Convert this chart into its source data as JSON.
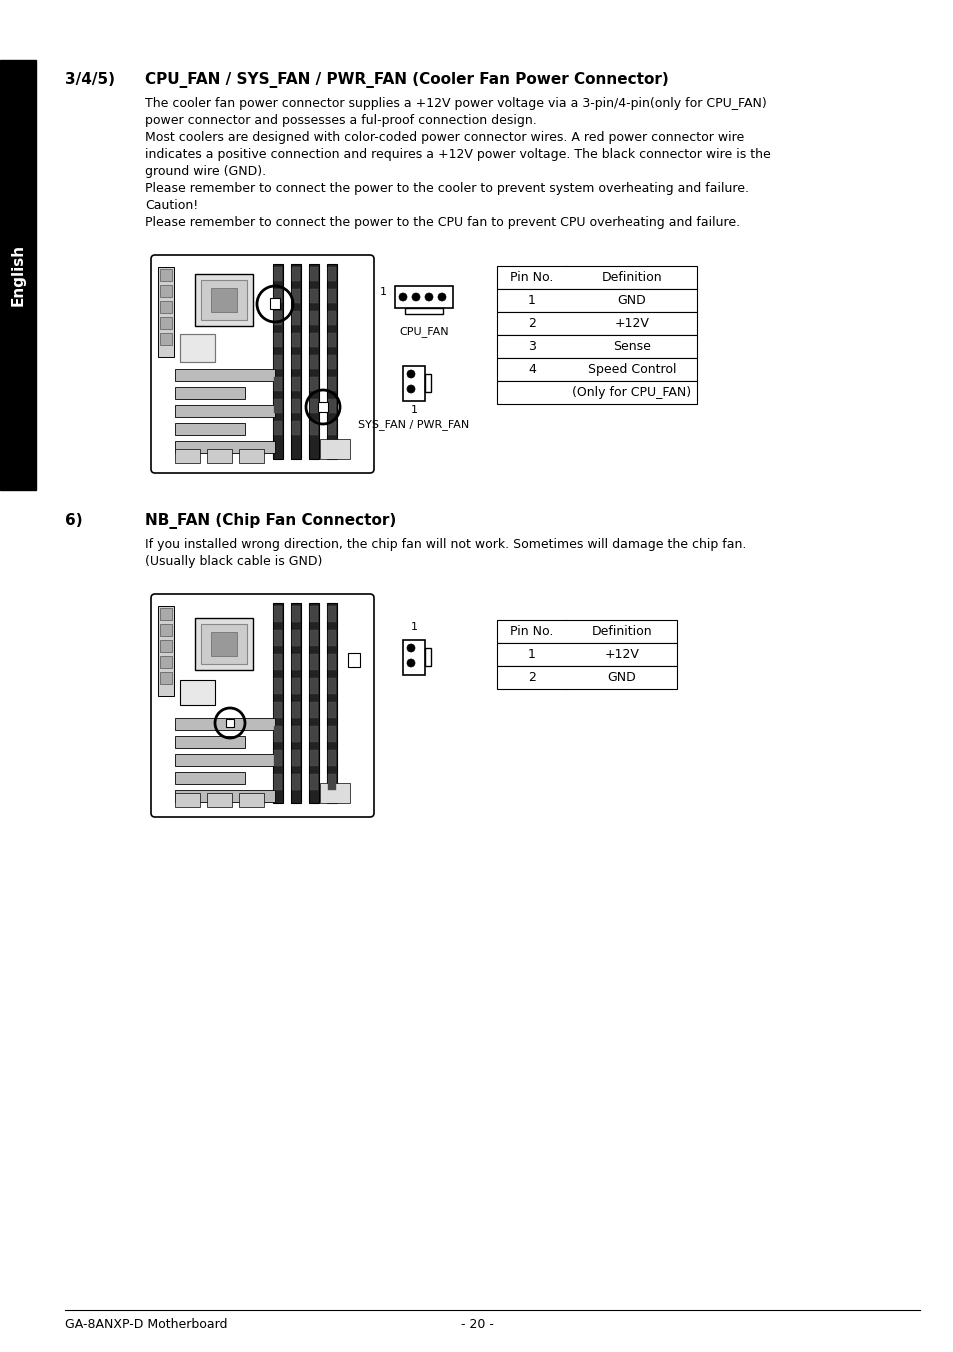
{
  "bg_color": "#ffffff",
  "sidebar_color": "#000000",
  "sidebar_text": "English",
  "sidebar_text_color": "#ffffff",
  "title_345": "3/4/5)",
  "heading_345": "CPU_FAN / SYS_FAN / PWR_FAN (Cooler Fan Power Connector)",
  "body_345": [
    "The cooler fan power connector supplies a +12V power voltage via a 3-pin/4-pin(only for CPU_FAN)",
    "power connector and possesses a ful-proof connection design.",
    "Most coolers are designed with color-coded power connector wires. A red power connector wire",
    "indicates a positive connection and requires a +12V power voltage. The black connector wire is the",
    "ground wire (GND).",
    "Please remember to connect the power to the cooler to prevent system overheating and failure.",
    "Caution!",
    "Please remember to connect the power to the CPU fan to prevent CPU overheating and failure."
  ],
  "title_6": "6)",
  "heading_6": "NB_FAN (Chip Fan Connector)",
  "body_6": [
    "If you installed wrong direction, the chip fan will not work. Sometimes will damage the chip fan.",
    "(Usually black cable is GND)"
  ],
  "table1_headers": [
    "Pin No.",
    "Definition"
  ],
  "table1_rows": [
    [
      "1",
      "GND"
    ],
    [
      "2",
      "+12V"
    ],
    [
      "3",
      "Sense"
    ],
    [
      "4",
      "Speed Control"
    ],
    [
      "",
      "(Only for CPU_FAN)"
    ]
  ],
  "table2_headers": [
    "Pin No.",
    "Definition"
  ],
  "table2_rows": [
    [
      "1",
      "+12V"
    ],
    [
      "2",
      "GND"
    ]
  ],
  "cpu_fan_label": "CPU_FAN",
  "sys_fan_label": "SYS_FAN / PWR_FAN",
  "footer_left": "GA-8ANXP-D Motherboard",
  "footer_center": "- 20 -"
}
